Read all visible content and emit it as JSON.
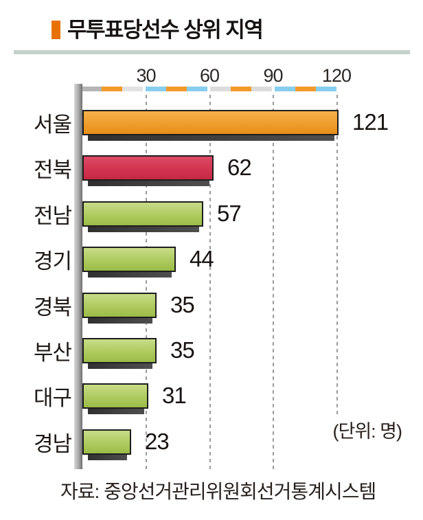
{
  "title": {
    "text": "무투표당선수 상위 지역"
  },
  "chart_data": {
    "type": "bar",
    "orientation": "horizontal",
    "title": "무투표당선수 상위 지역",
    "categories": [
      "서울",
      "전북",
      "전남",
      "경기",
      "경북",
      "부산",
      "대구",
      "경남"
    ],
    "values": [
      121,
      62,
      57,
      44,
      35,
      35,
      31,
      23
    ],
    "bar_color_keys": [
      "orange",
      "red",
      "green",
      "green",
      "green",
      "green",
      "green",
      "green"
    ],
    "x_ticks": [
      30,
      60,
      90,
      120
    ],
    "xlim": [
      0,
      128
    ],
    "grid": "vertical-dashed",
    "legend": "none",
    "value_labels": "right-of-bar",
    "unit_note": "(단위: 명)"
  },
  "footer": {
    "source": "자료: 중앙선거관리위원회선거통계시스템"
  },
  "decor": {
    "segments": [
      "#b5b5b5",
      "#f39a2b",
      "#e2e2e2",
      "#87ceee",
      "#f39a2b",
      "#87ceee",
      "#dcdcdc",
      "#f39a2b",
      "#dcdcdc",
      "#87ceee",
      "#f39a2b",
      "#87ceee"
    ]
  },
  "colors": {
    "accent_orange": "#e87200",
    "header_rule": "#c3d3c9",
    "bar_outline": "#1d1d1d",
    "bar_shadow": "#3e3e3e",
    "gridline": "#9a9a9a",
    "palette": {
      "orange": {
        "top": "#f6b04c",
        "mid": "#ef9d2c",
        "bot": "#e68e1a"
      },
      "red": {
        "top": "#dd4a66",
        "mid": "#d23450",
        "bot": "#c42944"
      },
      "green": {
        "top": "#c8dc88",
        "mid": "#aecb5f",
        "bot": "#9bbb47"
      }
    }
  }
}
